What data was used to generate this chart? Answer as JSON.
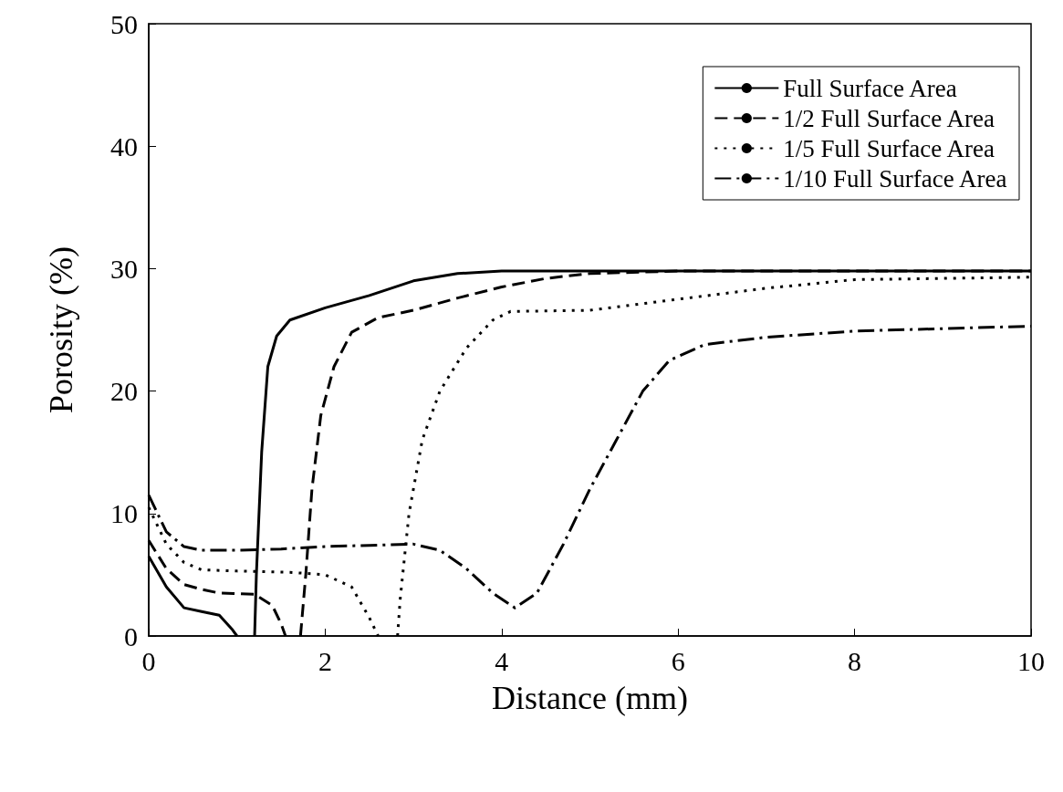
{
  "chart_data": {
    "type": "line",
    "xlabel": "Distance (mm)",
    "ylabel": "Porosity (%)",
    "xlim": [
      0,
      10
    ],
    "xticks": [
      0,
      2,
      4,
      6,
      8,
      10
    ],
    "ylim": [
      0,
      50
    ],
    "yticks": [
      0,
      10,
      20,
      30,
      40,
      50
    ],
    "grid": false,
    "legend": "top right",
    "marker": "none",
    "series": [
      {
        "name": "Full Surface Area",
        "color": "#000000",
        "line_style": "solid",
        "x": [
          0,
          0.2,
          0.4,
          0.6,
          0.8,
          0.95,
          1.0,
          1.1,
          1.2,
          1.22,
          1.28,
          1.35,
          1.45,
          1.6,
          2.0,
          2.5,
          3.0,
          3.5,
          4.0,
          10
        ],
        "values": [
          6.5,
          4,
          2.3,
          2,
          1.7,
          0.5,
          0,
          null,
          0,
          5,
          15,
          22,
          24.5,
          25.8,
          26.8,
          27.8,
          29,
          29.6,
          29.8,
          29.8
        ]
      },
      {
        "name": "1/2 Full Surface Area",
        "color": "#000000",
        "line_style": "dashed",
        "x": [
          0,
          0.2,
          0.4,
          0.6,
          0.8,
          1.2,
          1.4,
          1.5,
          1.55,
          1.65,
          1.72,
          1.78,
          1.85,
          1.95,
          2.1,
          2.3,
          2.6,
          3.0,
          3.5,
          4.0,
          4.5,
          5,
          6,
          10
        ],
        "values": [
          7.8,
          5.5,
          4.2,
          3.8,
          3.5,
          3.4,
          2.5,
          1,
          0,
          null,
          0,
          5,
          12,
          18,
          22,
          24.8,
          26,
          26.6,
          27.6,
          28.5,
          29.2,
          29.6,
          29.8,
          29.8
        ]
      },
      {
        "name": "1/5 Full Surface Area",
        "color": "#000000",
        "line_style": "dotted",
        "x": [
          0,
          0.2,
          0.4,
          0.6,
          1.0,
          1.6,
          2.0,
          2.3,
          2.5,
          2.6,
          2.7,
          2.82,
          2.85,
          2.95,
          3.1,
          3.3,
          3.6,
          3.9,
          4.1,
          5,
          6,
          7,
          8,
          10
        ],
        "values": [
          10.5,
          7.5,
          6,
          5.4,
          5.3,
          5.2,
          5,
          4,
          1.5,
          0,
          null,
          0,
          3,
          10,
          16,
          20,
          23.5,
          25.8,
          26.5,
          26.6,
          27.5,
          28.4,
          29.1,
          29.3
        ]
      },
      {
        "name": "1/10 Full Surface Area",
        "color": "#000000",
        "line_style": "dashdot",
        "x": [
          0,
          0.2,
          0.4,
          0.6,
          1.0,
          1.5,
          2,
          2.5,
          3,
          3.3,
          3.6,
          3.9,
          4.15,
          4.4,
          4.7,
          5,
          5.3,
          5.6,
          5.9,
          6.3,
          7,
          8,
          10
        ],
        "values": [
          11.5,
          8.5,
          7.3,
          7,
          7,
          7.1,
          7.3,
          7.4,
          7.5,
          7,
          5.5,
          3.5,
          2.3,
          3.5,
          7.5,
          12,
          16,
          20,
          22.5,
          23.8,
          24.4,
          24.9,
          25.3
        ]
      }
    ]
  }
}
